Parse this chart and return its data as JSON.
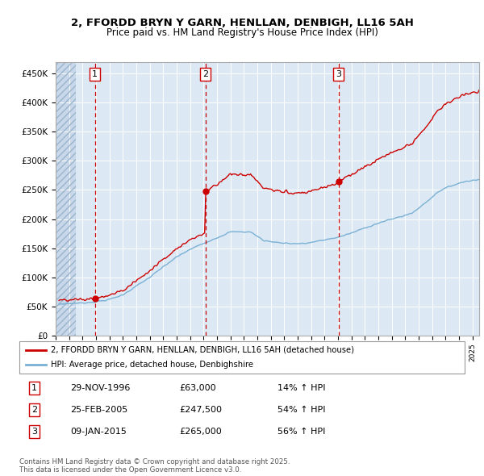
{
  "title1": "2, FFORDD BRYN Y GARN, HENLLAN, DENBIGH, LL16 5AH",
  "title2": "Price paid vs. HM Land Registry's House Price Index (HPI)",
  "legend_label_red": "2, FFORDD BRYN Y GARN, HENLLAN, DENBIGH, LL16 5AH (detached house)",
  "legend_label_blue": "HPI: Average price, detached house, Denbighshire",
  "footer": "Contains HM Land Registry data © Crown copyright and database right 2025.\nThis data is licensed under the Open Government Licence v3.0.",
  "transactions": [
    {
      "num": 1,
      "date": "29-NOV-1996",
      "price": 63000,
      "hpi_pct": "14% ↑ HPI",
      "year": 1996.92
    },
    {
      "num": 2,
      "date": "25-FEB-2005",
      "price": 247500,
      "hpi_pct": "54% ↑ HPI",
      "year": 2005.15
    },
    {
      "num": 3,
      "date": "09-JAN-2015",
      "price": 265000,
      "hpi_pct": "56% ↑ HPI",
      "year": 2015.03
    }
  ],
  "ylim": [
    0,
    470000
  ],
  "xlim_start": 1994.0,
  "xlim_end": 2025.5,
  "background_color": "#dce9f5",
  "grid_color": "#ffffff",
  "red_line_color": "#cc0000",
  "blue_line_color": "#7ab0d4",
  "marker_color": "#cc0000",
  "box_edge_color": "#cc0000",
  "hatch_end": 1995.5
}
